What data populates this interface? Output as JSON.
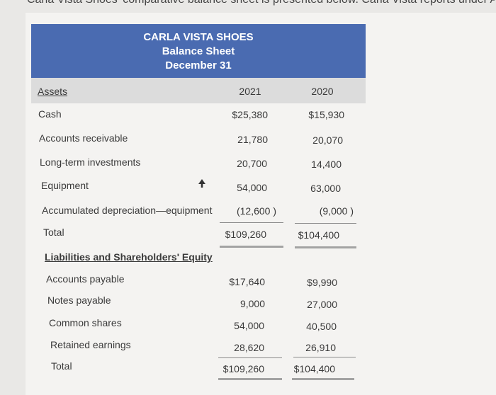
{
  "intro_text": "Carla Vista Shoes' comparative balance sheet is presented below. Carla Vista reports under ASPE.",
  "header": {
    "company": "CARLA VISTA SHOES",
    "statement": "Balance Sheet",
    "date": "December 31"
  },
  "columns": {
    "label": "Assets",
    "year1": "2021",
    "year2": "2020"
  },
  "assets": [
    {
      "label": "Cash",
      "y2021": "$25,380",
      "y2020": "$15,930"
    },
    {
      "label": "Accounts receivable",
      "y2021": "21,780",
      "y2020": "20,070"
    },
    {
      "label": "Long-term investments",
      "y2021": "20,700",
      "y2020": "14,400"
    },
    {
      "label": "Equipment",
      "y2021": "54,000",
      "y2020": "63,000"
    },
    {
      "label": "Accumulated depreciation—equipment",
      "y2021": "(12,600 )",
      "y2020": "(9,000 )"
    },
    {
      "label": "Total",
      "y2021": "$109,260",
      "y2020": "$104,400"
    }
  ],
  "liabilities_heading": "Liabilities and Shareholders' Equity",
  "liabilities": [
    {
      "label": "Accounts payable",
      "y2021": "$17,640",
      "y2020": "$9,990"
    },
    {
      "label": "Notes payable",
      "y2021": "9,000",
      "y2020": "27,000"
    },
    {
      "label": "Common shares",
      "y2021": "54,000",
      "y2020": "40,500"
    },
    {
      "label": "Retained earnings",
      "y2021": "28,620",
      "y2020": "26,910"
    },
    {
      "label": "Total",
      "y2021": "$109,260",
      "y2020": "$104,400"
    }
  ]
}
